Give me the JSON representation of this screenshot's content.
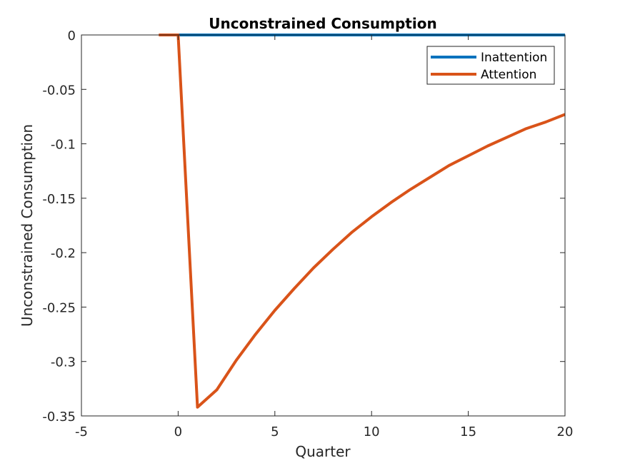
{
  "chart_data": {
    "type": "line",
    "title": "Unconstrained Consumption",
    "xlabel": "Quarter",
    "ylabel": "Unconstrained Consumption",
    "xlim": [
      -5,
      20
    ],
    "ylim": [
      -0.35,
      0
    ],
    "xticks": [
      -5,
      0,
      5,
      10,
      15,
      20
    ],
    "xtick_labels": [
      "-5",
      "0",
      "5",
      "10",
      "15",
      "20"
    ],
    "yticks": [
      0,
      -0.05,
      -0.1,
      -0.15,
      -0.2,
      -0.25,
      -0.3,
      -0.35
    ],
    "ytick_labels": [
      "0",
      "-0.05",
      "-0.1",
      "-0.15",
      "-0.2",
      "-0.25",
      "-0.3",
      "-0.35"
    ],
    "grid": false,
    "legend_position": "top-right",
    "series": [
      {
        "name": "Inattention",
        "color": "#0072BD",
        "x": [
          0,
          1,
          2,
          3,
          4,
          5,
          6,
          7,
          8,
          9,
          10,
          11,
          12,
          13,
          14,
          15,
          16,
          17,
          18,
          19,
          20
        ],
        "y": [
          0,
          0,
          0,
          0,
          0,
          0,
          0,
          0,
          0,
          0,
          0,
          0,
          0,
          0,
          0,
          0,
          0,
          0,
          0,
          0,
          0
        ]
      },
      {
        "name": "Attention",
        "color": "#D95319",
        "x": [
          -1,
          0,
          1,
          2,
          3,
          4,
          5,
          6,
          7,
          8,
          9,
          10,
          11,
          12,
          13,
          14,
          15,
          16,
          17,
          18,
          19,
          20
        ],
        "y": [
          0,
          0,
          -0.342,
          -0.326,
          -0.299,
          -0.275,
          -0.253,
          -0.233,
          -0.214,
          -0.197,
          -0.181,
          -0.167,
          -0.154,
          -0.142,
          -0.131,
          -0.12,
          -0.111,
          -0.102,
          -0.094,
          -0.086,
          -0.08,
          -0.073
        ]
      }
    ]
  }
}
